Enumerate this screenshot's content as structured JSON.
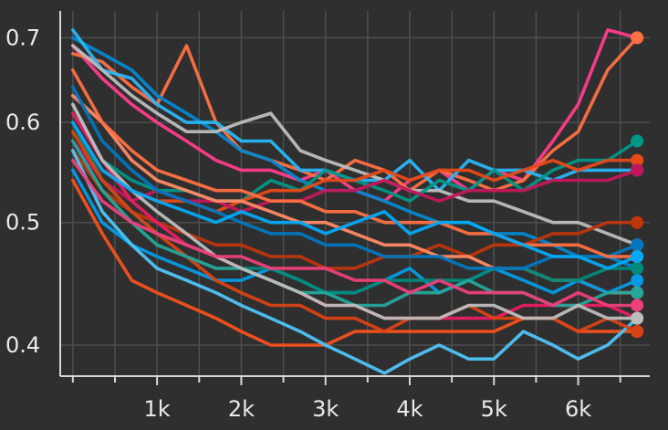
{
  "chart_data": {
    "type": "line",
    "title": "",
    "xlabel": "",
    "ylabel": "",
    "y_scale": "log",
    "xlim": [
      -150,
      6850
    ],
    "ylim": [
      0.378,
      0.735
    ],
    "grid": true,
    "x_ticks": [
      {
        "value": 1000,
        "label": "1k"
      },
      {
        "value": 2000,
        "label": "2k"
      },
      {
        "value": 3000,
        "label": "3k"
      },
      {
        "value": 4000,
        "label": "4k"
      },
      {
        "value": 5000,
        "label": "5k"
      },
      {
        "value": 6000,
        "label": "6k"
      }
    ],
    "y_ticks": [
      {
        "value": 0.4,
        "label": "0.4"
      },
      {
        "value": 0.5,
        "label": "0.5"
      },
      {
        "value": 0.6,
        "label": "0.6"
      },
      {
        "value": 0.7,
        "label": "0.7"
      }
    ],
    "x": [
      0,
      350,
      700,
      1000,
      1350,
      1700,
      2000,
      2350,
      2700,
      3000,
      3350,
      3700,
      4000,
      4350,
      4700,
      5000,
      5350,
      5700,
      6000,
      6350,
      6700
    ],
    "series": [
      {
        "color": "#ff3d8b",
        "values": [
          0.69,
          0.65,
          0.62,
          0.6,
          0.58,
          0.56,
          0.55,
          0.55,
          0.54,
          0.55,
          0.53,
          0.52,
          0.54,
          0.55,
          0.53,
          0.55,
          0.54,
          0.58,
          0.62,
          0.71,
          0.7
        ]
      },
      {
        "color": "#ff7043",
        "values": [
          0.68,
          0.67,
          0.64,
          0.62,
          0.69,
          0.6,
          0.57,
          0.56,
          0.55,
          0.54,
          0.56,
          0.55,
          0.53,
          0.55,
          0.54,
          0.53,
          0.54,
          0.57,
          0.59,
          0.66,
          0.7
        ]
      },
      {
        "color": "#0288d1",
        "values": [
          0.7,
          0.68,
          0.66,
          0.63,
          0.61,
          0.59,
          0.57,
          0.56,
          0.54,
          0.53,
          0.53,
          0.52,
          0.51,
          0.5,
          0.5,
          0.49,
          0.49,
          0.48,
          0.47,
          0.47,
          0.46
        ]
      },
      {
        "color": "#29b6f6",
        "values": [
          0.71,
          0.66,
          0.65,
          0.62,
          0.6,
          0.6,
          0.58,
          0.58,
          0.55,
          0.55,
          0.54,
          0.54,
          0.56,
          0.53,
          0.56,
          0.55,
          0.55,
          0.54,
          0.55,
          0.55,
          0.55
        ]
      },
      {
        "color": "#bdbdbd",
        "values": [
          0.69,
          0.66,
          0.63,
          0.61,
          0.59,
          0.59,
          0.6,
          0.61,
          0.57,
          0.56,
          0.55,
          0.54,
          0.53,
          0.53,
          0.52,
          0.52,
          0.51,
          0.5,
          0.5,
          0.49,
          0.48
        ]
      },
      {
        "color": "#009688",
        "values": [
          0.62,
          0.56,
          0.54,
          0.53,
          0.53,
          0.52,
          0.52,
          0.54,
          0.53,
          0.55,
          0.54,
          0.53,
          0.52,
          0.54,
          0.53,
          0.55,
          0.53,
          0.55,
          0.56,
          0.56,
          0.58
        ]
      },
      {
        "color": "#e64a19",
        "values": [
          0.6,
          0.55,
          0.53,
          0.52,
          0.52,
          0.51,
          0.52,
          0.53,
          0.53,
          0.54,
          0.54,
          0.55,
          0.54,
          0.55,
          0.55,
          0.54,
          0.55,
          0.56,
          0.55,
          0.56,
          0.56
        ]
      },
      {
        "color": "#c2185b",
        "values": [
          0.58,
          0.54,
          0.52,
          0.53,
          0.52,
          0.52,
          0.51,
          0.52,
          0.52,
          0.53,
          0.53,
          0.54,
          0.53,
          0.52,
          0.53,
          0.53,
          0.53,
          0.54,
          0.54,
          0.54,
          0.55
        ]
      },
      {
        "color": "#bf360c",
        "values": [
          0.57,
          0.53,
          0.51,
          0.5,
          0.49,
          0.48,
          0.48,
          0.47,
          0.47,
          0.46,
          0.46,
          0.47,
          0.47,
          0.48,
          0.47,
          0.48,
          0.48,
          0.49,
          0.49,
          0.5,
          0.5
        ]
      },
      {
        "color": "#ff8a65",
        "values": [
          0.63,
          0.6,
          0.56,
          0.54,
          0.53,
          0.52,
          0.52,
          0.51,
          0.5,
          0.5,
          0.49,
          0.48,
          0.48,
          0.47,
          0.47,
          0.46,
          0.46,
          0.45,
          0.45,
          0.44,
          0.44
        ]
      },
      {
        "color": "#039be5",
        "values": [
          0.55,
          0.5,
          0.48,
          0.47,
          0.46,
          0.45,
          0.45,
          0.46,
          0.45,
          0.44,
          0.44,
          0.45,
          0.46,
          0.44,
          0.45,
          0.46,
          0.45,
          0.44,
          0.45,
          0.44,
          0.45
        ]
      },
      {
        "color": "#00897b",
        "values": [
          0.6,
          0.54,
          0.51,
          0.49,
          0.48,
          0.47,
          0.46,
          0.46,
          0.45,
          0.44,
          0.44,
          0.45,
          0.45,
          0.45,
          0.45,
          0.46,
          0.46,
          0.45,
          0.45,
          0.46,
          0.46
        ]
      },
      {
        "color": "#f4511e",
        "values": [
          0.54,
          0.49,
          0.45,
          0.44,
          0.43,
          0.42,
          0.41,
          0.4,
          0.4,
          0.4,
          0.41,
          0.41,
          0.41,
          0.41,
          0.41,
          0.41,
          0.42,
          0.42,
          0.41,
          0.41,
          0.41
        ]
      },
      {
        "color": "#4fc3f7",
        "values": [
          0.57,
          0.51,
          0.48,
          0.46,
          0.45,
          0.44,
          0.43,
          0.42,
          0.41,
          0.4,
          0.39,
          0.38,
          0.39,
          0.4,
          0.39,
          0.39,
          0.41,
          0.4,
          0.39,
          0.4,
          0.42
        ]
      },
      {
        "color": "#e91e63",
        "values": [
          0.61,
          0.56,
          0.52,
          0.5,
          0.48,
          0.47,
          0.46,
          0.45,
          0.44,
          0.43,
          0.43,
          0.42,
          0.42,
          0.42,
          0.42,
          0.42,
          0.43,
          0.43,
          0.43,
          0.43,
          0.42
        ]
      },
      {
        "color": "#d84315",
        "values": [
          0.59,
          0.54,
          0.51,
          0.49,
          0.47,
          0.45,
          0.44,
          0.43,
          0.43,
          0.42,
          0.42,
          0.41,
          0.42,
          0.42,
          0.43,
          0.42,
          0.42,
          0.42,
          0.41,
          0.42,
          0.41
        ]
      },
      {
        "color": "#0277bd",
        "values": [
          0.64,
          0.58,
          0.55,
          0.53,
          0.52,
          0.51,
          0.5,
          0.49,
          0.49,
          0.48,
          0.48,
          0.47,
          0.47,
          0.47,
          0.46,
          0.46,
          0.46,
          0.47,
          0.47,
          0.47,
          0.48
        ]
      },
      {
        "color": "#ff7043",
        "values": [
          0.66,
          0.6,
          0.57,
          0.55,
          0.54,
          0.53,
          0.53,
          0.52,
          0.52,
          0.51,
          0.51,
          0.5,
          0.5,
          0.5,
          0.49,
          0.49,
          0.48,
          0.48,
          0.48,
          0.47,
          0.47
        ]
      },
      {
        "color": "#26a69a",
        "values": [
          0.58,
          0.53,
          0.5,
          0.48,
          0.47,
          0.46,
          0.46,
          0.45,
          0.44,
          0.44,
          0.43,
          0.43,
          0.44,
          0.44,
          0.45,
          0.44,
          0.44,
          0.43,
          0.43,
          0.44,
          0.44
        ]
      },
      {
        "color": "#bdbdbd",
        "values": [
          0.62,
          0.56,
          0.53,
          0.51,
          0.49,
          0.47,
          0.46,
          0.45,
          0.44,
          0.43,
          0.43,
          0.42,
          0.42,
          0.42,
          0.43,
          0.43,
          0.42,
          0.42,
          0.43,
          0.42,
          0.42
        ]
      },
      {
        "color": "#ec407a",
        "values": [
          0.56,
          0.52,
          0.5,
          0.49,
          0.48,
          0.47,
          0.47,
          0.46,
          0.46,
          0.46,
          0.45,
          0.45,
          0.44,
          0.45,
          0.44,
          0.44,
          0.44,
          0.43,
          0.44,
          0.43,
          0.43
        ]
      },
      {
        "color": "#03a9f4",
        "values": [
          0.6,
          0.55,
          0.53,
          0.52,
          0.51,
          0.5,
          0.51,
          0.5,
          0.5,
          0.49,
          0.5,
          0.51,
          0.49,
          0.5,
          0.5,
          0.49,
          0.48,
          0.47,
          0.47,
          0.46,
          0.47
        ]
      }
    ]
  }
}
